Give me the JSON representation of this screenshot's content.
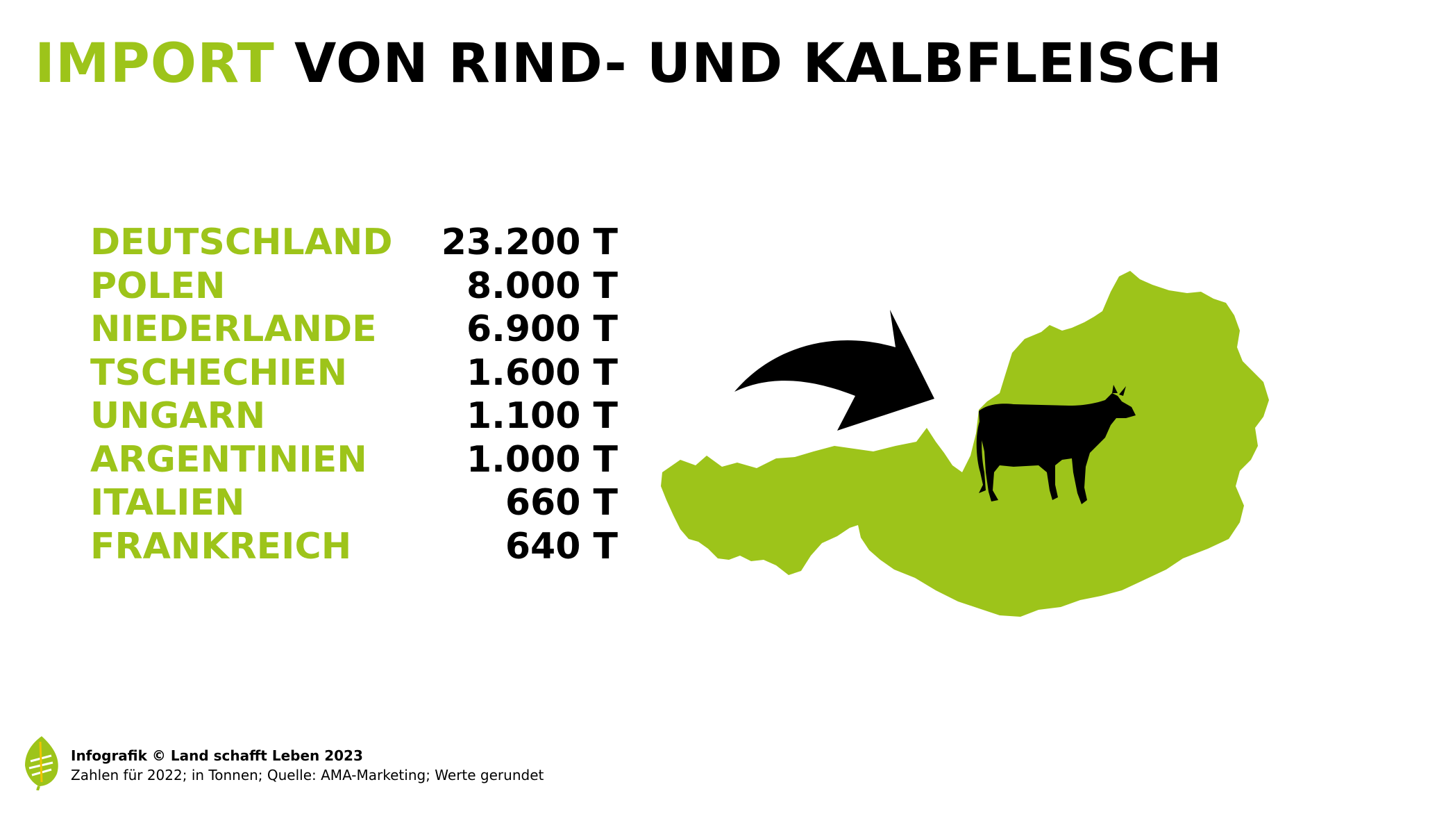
{
  "title": {
    "accent": "IMPORT",
    "rest": "VON RIND- UND KALBFLEISCH"
  },
  "colors": {
    "accent": "#9dc41a",
    "text": "#000000",
    "background": "#ffffff"
  },
  "icons": {
    "map": "austria-map-icon",
    "arrow": "curved-arrow-icon",
    "animal": "cow-icon",
    "logo": "leaf-logo-icon"
  },
  "chart_data": {
    "type": "table",
    "rows": [
      {
        "country": "DEUTSCHLAND",
        "value": 23200,
        "label": "23.200 T"
      },
      {
        "country": "POLEN",
        "value": 8000,
        "label": "8.000 T"
      },
      {
        "country": "NIEDERLANDE",
        "value": 6900,
        "label": "6.900 T"
      },
      {
        "country": "TSCHECHIEN",
        "value": 1600,
        "label": "1.600 T"
      },
      {
        "country": "UNGARN",
        "value": 1100,
        "label": "1.100 T"
      },
      {
        "country": "ARGENTINIEN",
        "value": 1000,
        "label": "1.000 T"
      },
      {
        "country": "ITALIEN",
        "value": 660,
        "label": "660 T"
      },
      {
        "country": "FRANKREICH",
        "value": 640,
        "label": "640 T"
      }
    ]
  },
  "footer": {
    "credit": "Infografik © Land schafft Leben 2023",
    "note": "Zahlen für 2022; in Tonnen; Quelle: AMA-Marketing; Werte gerundet"
  }
}
